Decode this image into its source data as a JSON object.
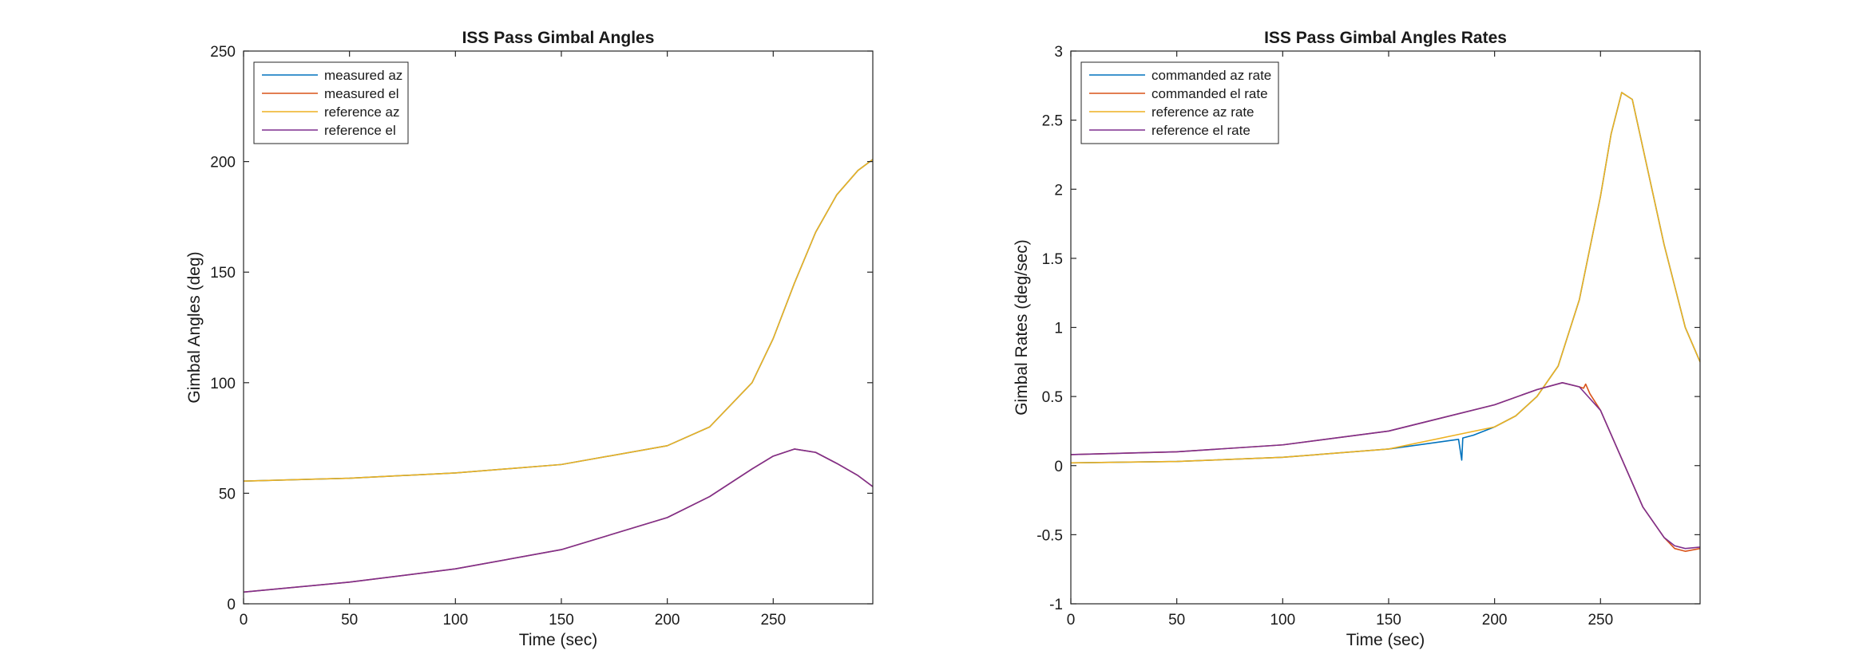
{
  "chart_data": [
    {
      "type": "line",
      "title": "ISS Pass Gimbal Angles",
      "xlabel": "Time (sec)",
      "ylabel": "Gimbal Angles (deg)",
      "xlim": [
        0,
        297
      ],
      "ylim": [
        0,
        250
      ],
      "xticks": [
        0,
        50,
        100,
        150,
        200,
        250
      ],
      "yticks": [
        0,
        50,
        100,
        150,
        200,
        250
      ],
      "legend_position": "top-left",
      "series": [
        {
          "name": "measured az",
          "color": "#0072BD",
          "x": [
            0,
            50,
            100,
            150,
            200,
            220,
            240,
            250,
            260,
            270,
            280,
            290,
            297
          ],
          "y": [
            55.5,
            56.8,
            59.2,
            63.0,
            71.5,
            80.0,
            100.0,
            120.0,
            145.0,
            168.0,
            185.0,
            196.0,
            201.0
          ]
        },
        {
          "name": "measured el",
          "color": "#D95319",
          "x": [
            0,
            50,
            100,
            150,
            200,
            220,
            240,
            250,
            260,
            270,
            280,
            290,
            297
          ],
          "y": [
            5.3,
            9.8,
            15.8,
            24.5,
            39.0,
            48.5,
            61.0,
            66.8,
            70.0,
            68.5,
            63.5,
            58.0,
            53.0
          ]
        },
        {
          "name": "reference az",
          "color": "#EDB120",
          "x": [
            0,
            50,
            100,
            150,
            200,
            220,
            240,
            250,
            260,
            270,
            280,
            290,
            297
          ],
          "y": [
            55.5,
            56.8,
            59.2,
            63.0,
            71.5,
            80.0,
            100.0,
            120.0,
            145.0,
            168.0,
            185.0,
            196.0,
            201.0
          ]
        },
        {
          "name": "reference el",
          "color": "#7E2F8E",
          "x": [
            0,
            50,
            100,
            150,
            200,
            220,
            240,
            250,
            260,
            270,
            280,
            290,
            297
          ],
          "y": [
            5.3,
            9.8,
            15.8,
            24.5,
            39.0,
            48.5,
            61.0,
            66.8,
            70.0,
            68.5,
            63.5,
            58.0,
            53.0
          ]
        }
      ]
    },
    {
      "type": "line",
      "title": "ISS Pass Gimbal Angles Rates",
      "xlabel": "Time (sec)",
      "ylabel": "Gimbal Rates (deg/sec)",
      "xlim": [
        0,
        297
      ],
      "ylim": [
        -1,
        3
      ],
      "xticks": [
        0,
        50,
        100,
        150,
        200,
        250
      ],
      "yticks": [
        -1,
        -0.5,
        0,
        0.5,
        1,
        1.5,
        2,
        2.5,
        3
      ],
      "legend_position": "top-left",
      "series": [
        {
          "name": "commanded az rate",
          "color": "#0072BD",
          "x": [
            0,
            50,
            100,
            150,
            183,
            184.5,
            185,
            190,
            200,
            210,
            220,
            230,
            240,
            250,
            255,
            260,
            265,
            270,
            280,
            290,
            297
          ],
          "y": [
            0.02,
            0.03,
            0.06,
            0.12,
            0.19,
            0.04,
            0.2,
            0.22,
            0.28,
            0.36,
            0.5,
            0.72,
            1.2,
            1.95,
            2.4,
            2.7,
            2.65,
            2.3,
            1.6,
            1.0,
            0.75
          ]
        },
        {
          "name": "commanded el rate",
          "color": "#D95319",
          "x": [
            0,
            50,
            100,
            150,
            200,
            220,
            232,
            240,
            242,
            243,
            245,
            250,
            260,
            270,
            280,
            285,
            290,
            297
          ],
          "y": [
            0.08,
            0.1,
            0.15,
            0.25,
            0.44,
            0.55,
            0.6,
            0.57,
            0.56,
            0.59,
            0.52,
            0.4,
            0.05,
            -0.3,
            -0.52,
            -0.6,
            -0.62,
            -0.6
          ]
        },
        {
          "name": "reference az rate",
          "color": "#EDB120",
          "x": [
            0,
            50,
            100,
            150,
            200,
            210,
            220,
            230,
            240,
            250,
            255,
            260,
            265,
            270,
            280,
            290,
            297
          ],
          "y": [
            0.02,
            0.03,
            0.06,
            0.12,
            0.28,
            0.36,
            0.5,
            0.72,
            1.2,
            1.95,
            2.4,
            2.7,
            2.65,
            2.3,
            1.6,
            1.0,
            0.75
          ]
        },
        {
          "name": "reference el rate",
          "color": "#7E2F8E",
          "x": [
            0,
            50,
            100,
            150,
            200,
            220,
            232,
            240,
            250,
            260,
            270,
            280,
            285,
            290,
            297
          ],
          "y": [
            0.08,
            0.1,
            0.15,
            0.25,
            0.44,
            0.55,
            0.6,
            0.57,
            0.4,
            0.05,
            -0.3,
            -0.52,
            -0.58,
            -0.6,
            -0.59
          ]
        }
      ]
    }
  ]
}
